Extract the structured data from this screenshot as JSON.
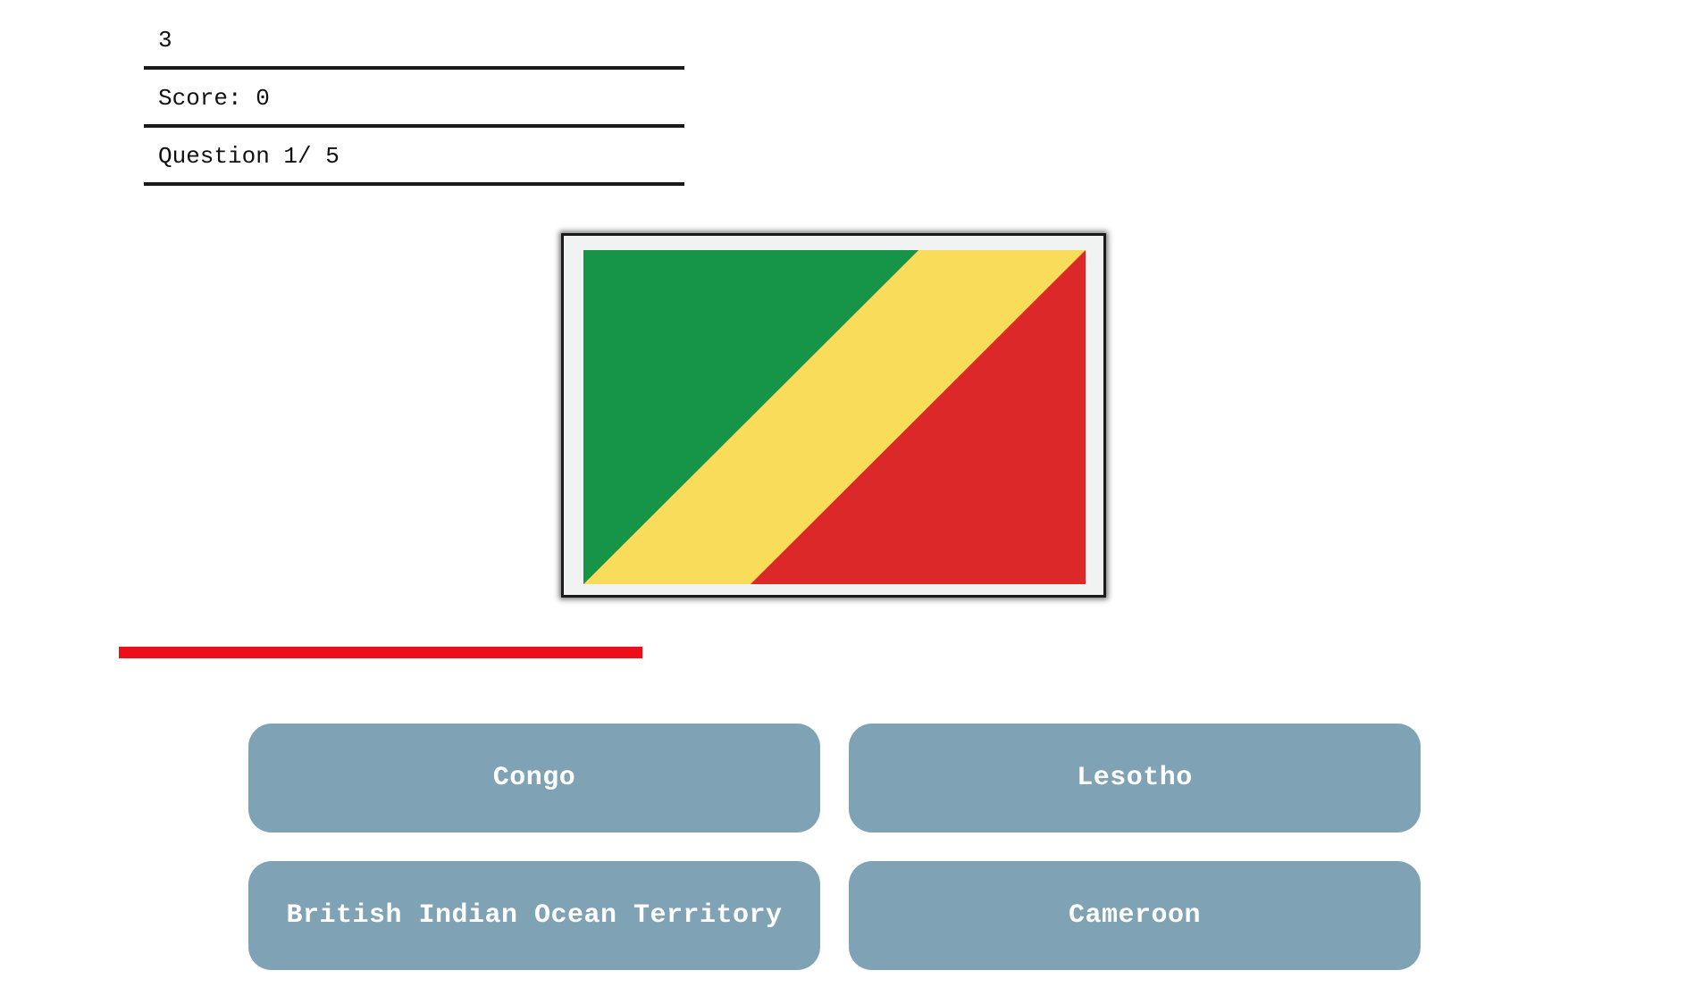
{
  "status": {
    "timer": "3",
    "score": "Score: 0",
    "question": "Question 1/ 5"
  },
  "flag": {
    "icon": "flag-of-congo-icon",
    "colors": {
      "frame": "#f1f2f2",
      "green": "#169447",
      "yellow": "#f9dc5a",
      "red": "#dc2829"
    }
  },
  "progress": {
    "fraction": 0.6,
    "color": "#ec0f1a"
  },
  "answers": [
    {
      "label": "Congo"
    },
    {
      "label": "Lesotho"
    },
    {
      "label": "British Indian Ocean Territory"
    },
    {
      "label": "Cameroon"
    }
  ],
  "colors": {
    "button_bg": "#7fa2b5",
    "button_text": "#ffffff"
  }
}
